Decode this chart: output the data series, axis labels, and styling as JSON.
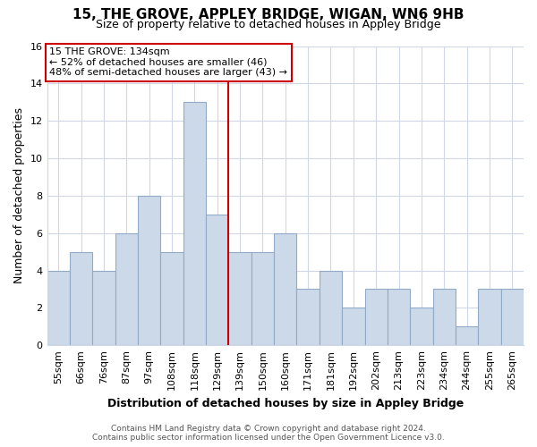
{
  "title": "15, THE GROVE, APPLEY BRIDGE, WIGAN, WN6 9HB",
  "subtitle": "Size of property relative to detached houses in Appley Bridge",
  "xlabel": "Distribution of detached houses by size in Appley Bridge",
  "ylabel": "Number of detached properties",
  "bar_labels": [
    "55sqm",
    "66sqm",
    "76sqm",
    "87sqm",
    "97sqm",
    "108sqm",
    "118sqm",
    "129sqm",
    "139sqm",
    "150sqm",
    "160sqm",
    "171sqm",
    "181sqm",
    "192sqm",
    "202sqm",
    "213sqm",
    "223sqm",
    "234sqm",
    "244sqm",
    "255sqm",
    "265sqm"
  ],
  "bar_values": [
    4,
    5,
    4,
    6,
    8,
    5,
    13,
    7,
    5,
    5,
    6,
    3,
    4,
    2,
    3,
    3,
    2,
    3,
    1,
    3,
    3
  ],
  "bar_color": "#ccd9e8",
  "bar_edge_color": "#90aac8",
  "vline_x_index": 7,
  "vline_color": "#cc0000",
  "annotation_title": "15 THE GROVE: 134sqm",
  "annotation_line1": "← 52% of detached houses are smaller (46)",
  "annotation_line2": "48% of semi-detached houses are larger (43) →",
  "annotation_box_color": "#ffffff",
  "annotation_box_edge": "#cc0000",
  "ylim": [
    0,
    16
  ],
  "yticks": [
    0,
    2,
    4,
    6,
    8,
    10,
    12,
    14,
    16
  ],
  "footer_line1": "Contains HM Land Registry data © Crown copyright and database right 2024.",
  "footer_line2": "Contains public sector information licensed under the Open Government Licence v3.0.",
  "background_color": "#ffffff",
  "plot_background_color": "#ffffff",
  "grid_color": "#d0d8e8",
  "title_fontsize": 11,
  "subtitle_fontsize": 9,
  "ylabel_fontsize": 9,
  "xlabel_fontsize": 9,
  "tick_fontsize": 8,
  "annotation_fontsize": 8,
  "footer_fontsize": 6.5
}
